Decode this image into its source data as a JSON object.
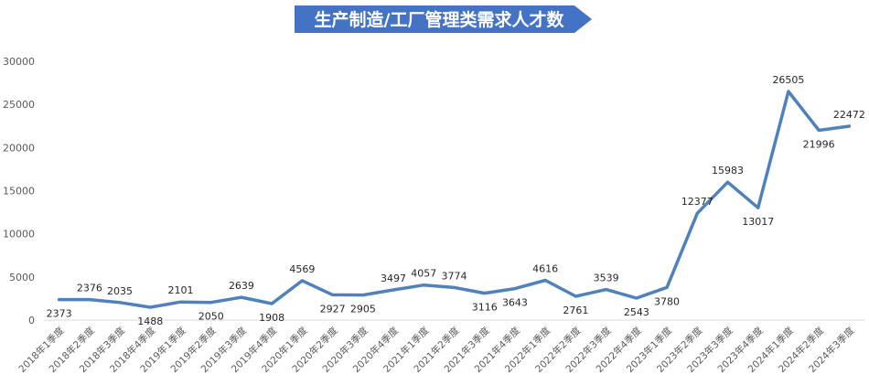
{
  "chart_data": {
    "type": "line",
    "title": "生产制造/工厂管理类需求人才数",
    "xlabel": "",
    "ylabel": "",
    "ylim": [
      0,
      30000
    ],
    "yticks": [
      "0",
      "5000",
      "10000",
      "15000",
      "20000",
      "25000",
      "30000"
    ],
    "grid": false,
    "legend": "none",
    "categories": [
      "2018年1季度",
      "2018年2季度",
      "2018年3季度",
      "2018年4季度",
      "2019年1季度",
      "2019年2季度",
      "2019年3季度",
      "2019年4季度",
      "2020年1季度",
      "2020年2季度",
      "2020年3季度",
      "2020年4季度",
      "2021年1季度",
      "2021年2季度",
      "2021年3季度",
      "2021年4季度",
      "2022年1季度",
      "2022年2季度",
      "2022年3季度",
      "2022年4季度",
      "2023年1季度",
      "2023年2季度",
      "2023年3季度",
      "2023年4季度",
      "2024年1季度",
      "2024年2季度",
      "2024年3季度"
    ],
    "values": [
      2373,
      2376,
      2035,
      1488,
      2101,
      2050,
      2639,
      1908,
      4569,
      2927,
      2905,
      3497,
      4057,
      3774,
      3116,
      3643,
      4616,
      2761,
      3539,
      2543,
      3780,
      12377,
      15983,
      13017,
      26505,
      21996,
      22472
    ],
    "data_labels": [
      "2373",
      "2376",
      "2035",
      "1488",
      "2101",
      "2050",
      "2639",
      "1908",
      "4569",
      "2927",
      "2905",
      "3497",
      "4057",
      "3774",
      "3116",
      "3643",
      "4616",
      "2761",
      "3539",
      "2543",
      "3780",
      "12377",
      "15983",
      "13017",
      "26505",
      "21996",
      "22472"
    ],
    "colors": {
      "line": "#4f81bd",
      "title_banner": "#4472c4",
      "axis": "#d9d9d9"
    }
  }
}
